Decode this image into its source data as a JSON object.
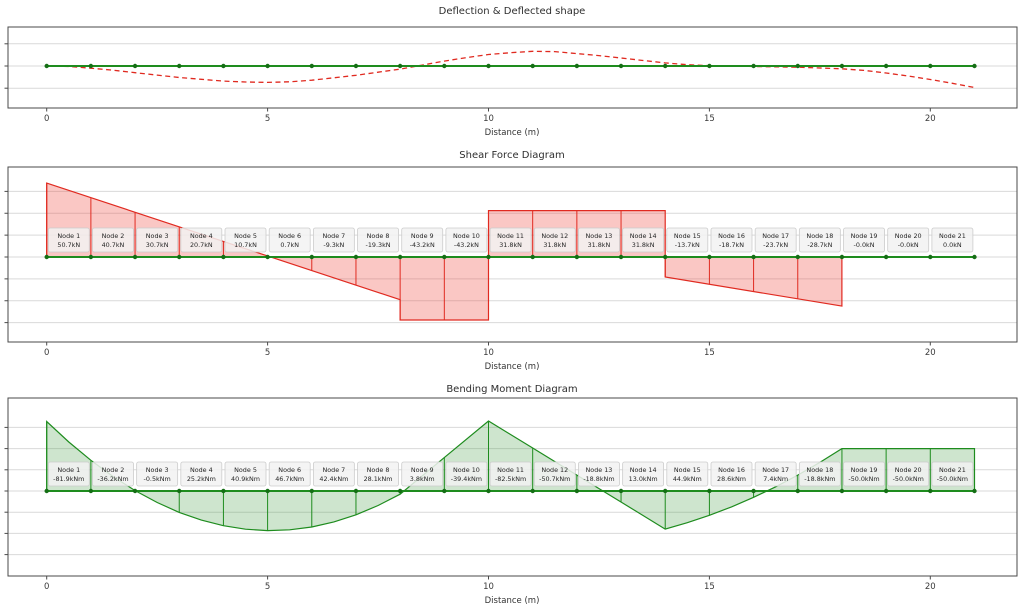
{
  "figure": {
    "background": "#ffffff"
  },
  "chart_data": [
    {
      "type": "line",
      "title": "Deflection & Deflected shape",
      "xlabel": "Distance (m)",
      "x_ticks": [
        0,
        5,
        10,
        15,
        20
      ],
      "xlim": [
        -0.9,
        22.0
      ],
      "y_tick_labels_visible": false,
      "grid": true,
      "beam": {
        "start_m": 0,
        "end_m": 21,
        "node_spacing_m": 1,
        "value": 0,
        "color": "#1e8c1e"
      },
      "deflected_shape": {
        "color": "#e02a20",
        "style": "dashed",
        "samples": [
          [
            0,
            0
          ],
          [
            0.5,
            -0.012
          ],
          [
            1,
            -0.05
          ],
          [
            1.5,
            -0.095
          ],
          [
            2,
            -0.15
          ],
          [
            2.5,
            -0.205
          ],
          [
            3,
            -0.26
          ],
          [
            3.5,
            -0.3
          ],
          [
            4,
            -0.34
          ],
          [
            4.5,
            -0.36
          ],
          [
            5,
            -0.37
          ],
          [
            5.5,
            -0.355
          ],
          [
            6,
            -0.32
          ],
          [
            6.5,
            -0.265
          ],
          [
            7,
            -0.21
          ],
          [
            7.5,
            -0.14
          ],
          [
            8,
            -0.07
          ],
          [
            8.5,
            0.02
          ],
          [
            9,
            0.11
          ],
          [
            9.5,
            0.19
          ],
          [
            10,
            0.26
          ],
          [
            10.5,
            0.3
          ],
          [
            11,
            0.33
          ],
          [
            11.5,
            0.325
          ],
          [
            12,
            0.28
          ],
          [
            12.5,
            0.235
          ],
          [
            13,
            0.18
          ],
          [
            13.5,
            0.125
          ],
          [
            14,
            0.07
          ],
          [
            14.5,
            0.03
          ],
          [
            15,
            0.007
          ],
          [
            16,
            -0.011
          ],
          [
            17,
            -0.027
          ],
          [
            18,
            -0.063
          ],
          [
            18.5,
            -0.1
          ],
          [
            19,
            -0.158
          ],
          [
            19.5,
            -0.225
          ],
          [
            20,
            -0.304
          ],
          [
            20.5,
            -0.39
          ],
          [
            21,
            -0.484
          ]
        ]
      }
    },
    {
      "type": "area",
      "title": "Shear Force Diagram",
      "xlabel": "Distance (m)",
      "x_ticks": [
        0,
        5,
        10,
        15,
        20
      ],
      "unit": "kN",
      "grid": true,
      "y_tick_labels_visible": false,
      "colors": {
        "line": "#e02a20",
        "fill": "rgba(240,70,60,0.30)"
      },
      "beam": {
        "start_m": 0,
        "end_m": 21,
        "node_spacing_m": 1,
        "value": 0,
        "color": "#1e8c1e"
      },
      "node_values": [
        50.7,
        40.7,
        30.7,
        20.7,
        10.7,
        0.7,
        -9.3,
        -19.3,
        -43.2,
        -43.2,
        31.8,
        31.8,
        31.8,
        31.8,
        -13.7,
        -18.7,
        -23.7,
        -28.7,
        -0.0,
        -0.0,
        0.0
      ],
      "node_labels": [
        {
          "name": "Node 1",
          "value": "50.7kN"
        },
        {
          "name": "Node 2",
          "value": "40.7kN"
        },
        {
          "name": "Node 3",
          "value": "30.7kN"
        },
        {
          "name": "Node 4",
          "value": "20.7kN"
        },
        {
          "name": "Node 5",
          "value": "10.7kN"
        },
        {
          "name": "Node 6",
          "value": "0.7kN"
        },
        {
          "name": "Node 7",
          "value": "-9.3kN"
        },
        {
          "name": "Node 8",
          "value": "-19.3kN"
        },
        {
          "name": "Node 9",
          "value": "-43.2kN"
        },
        {
          "name": "Node 10",
          "value": "-43.2kN"
        },
        {
          "name": "Node 11",
          "value": "31.8kN"
        },
        {
          "name": "Node 12",
          "value": "31.8kN"
        },
        {
          "name": "Node 13",
          "value": "31.8kN"
        },
        {
          "name": "Node 14",
          "value": "31.8kN"
        },
        {
          "name": "Node 15",
          "value": "-13.7kN"
        },
        {
          "name": "Node 16",
          "value": "-18.7kN"
        },
        {
          "name": "Node 17",
          "value": "-23.7kN"
        },
        {
          "name": "Node 18",
          "value": "-28.7kN"
        },
        {
          "name": "Node 19",
          "value": "-0.0kN"
        },
        {
          "name": "Node 20",
          "value": "-0.0kN"
        },
        {
          "name": "Node 21",
          "value": "0.0kN"
        }
      ],
      "outline": [
        [
          0,
          0
        ],
        [
          0,
          50.7
        ],
        [
          8,
          -29.3
        ],
        [
          8,
          -43.2
        ],
        [
          10,
          -43.2
        ],
        [
          10,
          31.8
        ],
        [
          14,
          31.8
        ],
        [
          14,
          -13.7
        ],
        [
          18,
          -33.7
        ],
        [
          18,
          0
        ],
        [
          21,
          0
        ]
      ]
    },
    {
      "type": "area",
      "title": "Bending Moment Diagram",
      "xlabel": "Distance (m)",
      "x_ticks": [
        0,
        5,
        10,
        15,
        20
      ],
      "unit": "kNm",
      "grid": true,
      "y_tick_labels_visible": false,
      "inverted_y": true,
      "colors": {
        "line": "#1e8c1e",
        "fill": "rgba(60,150,60,0.25)"
      },
      "beam": {
        "start_m": 0,
        "end_m": 21,
        "node_spacing_m": 1,
        "value": 0,
        "color": "#1e8c1e"
      },
      "node_values": [
        -81.9,
        -36.2,
        -0.5,
        25.2,
        40.9,
        46.7,
        42.4,
        28.1,
        3.8,
        -39.4,
        -82.5,
        -50.7,
        -18.8,
        13.0,
        44.9,
        28.6,
        7.4,
        -18.8,
        -50.0,
        -50.0,
        -50.0
      ],
      "node_labels": [
        {
          "name": "Node 1",
          "value": "-81.9kNm"
        },
        {
          "name": "Node 2",
          "value": "-36.2kNm"
        },
        {
          "name": "Node 3",
          "value": "-0.5kNm"
        },
        {
          "name": "Node 4",
          "value": "25.2kNm"
        },
        {
          "name": "Node 5",
          "value": "40.9kNm"
        },
        {
          "name": "Node 6",
          "value": "46.7kNm"
        },
        {
          "name": "Node 7",
          "value": "42.4kNm"
        },
        {
          "name": "Node 8",
          "value": "28.1kNm"
        },
        {
          "name": "Node 9",
          "value": "3.8kNm"
        },
        {
          "name": "Node 10",
          "value": "-39.4kNm"
        },
        {
          "name": "Node 11",
          "value": "-82.5kNm"
        },
        {
          "name": "Node 12",
          "value": "-50.7kNm"
        },
        {
          "name": "Node 13",
          "value": "-18.8kNm"
        },
        {
          "name": "Node 14",
          "value": "13.0kNm"
        },
        {
          "name": "Node 15",
          "value": "44.9kNm"
        },
        {
          "name": "Node 16",
          "value": "28.6kNm"
        },
        {
          "name": "Node 17",
          "value": "7.4kNm"
        },
        {
          "name": "Node 18",
          "value": "-18.8kNm"
        },
        {
          "name": "Node 19",
          "value": "-50.0kNm"
        },
        {
          "name": "Node 20",
          "value": "-50.0kNm"
        },
        {
          "name": "Node 21",
          "value": "-50.0kNm"
        }
      ],
      "curve": [
        [
          0,
          0
        ],
        [
          0,
          -81.9
        ],
        [
          0.5,
          -57.8
        ],
        [
          1,
          -36.2
        ],
        [
          1.5,
          -17.1
        ],
        [
          2,
          -0.5
        ],
        [
          2.5,
          13.6
        ],
        [
          3,
          25.2
        ],
        [
          3.5,
          34.3
        ],
        [
          4,
          40.9
        ],
        [
          4.5,
          45.0
        ],
        [
          5,
          46.7
        ],
        [
          5.5,
          45.7
        ],
        [
          6,
          42.4
        ],
        [
          6.5,
          36.4
        ],
        [
          7,
          28.1
        ],
        [
          7.5,
          17.1
        ],
        [
          8,
          3.8
        ],
        [
          9,
          -39.4
        ],
        [
          10,
          -82.5
        ],
        [
          11,
          -50.7
        ],
        [
          12,
          -18.8
        ],
        [
          13,
          13.0
        ],
        [
          14,
          44.9
        ],
        [
          14.5,
          37.4
        ],
        [
          15,
          28.6
        ],
        [
          15.5,
          18.7
        ],
        [
          16,
          7.4
        ],
        [
          16.5,
          -5.0
        ],
        [
          17,
          -18.8
        ],
        [
          17.5,
          -33.7
        ],
        [
          18,
          -50.0
        ],
        [
          21,
          -50.0
        ],
        [
          21,
          0
        ]
      ]
    }
  ]
}
